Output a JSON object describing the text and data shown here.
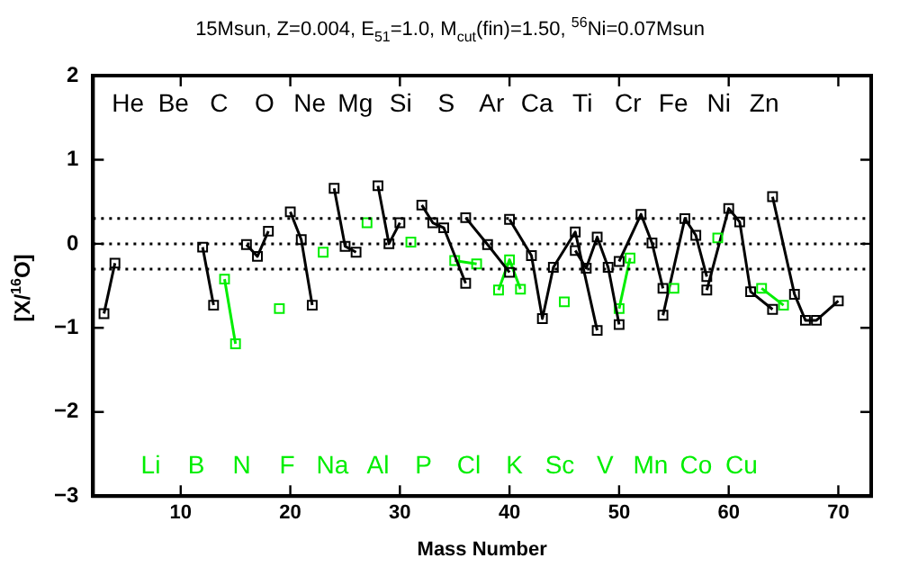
{
  "chart_data": {
    "type": "line",
    "title": "15Msun, Z=0.004, E$_{51}$=1.0, M$_{cut}$(fin)=1.50, $^{56}$Ni=0.07Msun",
    "xlabel": "Mass Number",
    "ylabel": "[X/$^{16}$O]",
    "xlim": [
      2,
      73
    ],
    "xticks": [
      10,
      20,
      30,
      40,
      50,
      60,
      70
    ],
    "ylim": [
      -3,
      2
    ],
    "yticks": [
      -3,
      -2,
      -1,
      0,
      1,
      2
    ],
    "marker": "square",
    "line_style": "solid",
    "series": [
      {
        "color": "#000000",
        "x": [
          3,
          4
        ],
        "values": [
          -0.83,
          -0.23
        ]
      },
      {
        "color": "#000000",
        "x": [
          12,
          13
        ],
        "values": [
          -0.04,
          -0.73
        ]
      },
      {
        "color": "#00ee00",
        "x": [
          14,
          15
        ],
        "values": [
          -0.42,
          -1.19
        ]
      },
      {
        "color": "#000000",
        "x": [
          16,
          17,
          18
        ],
        "values": [
          -0.01,
          -0.15,
          0.15
        ]
      },
      {
        "color": "#00ee00",
        "x": [
          19
        ],
        "values": [
          -0.77
        ]
      },
      {
        "color": "#000000",
        "x": [
          20,
          21,
          22
        ],
        "values": [
          0.38,
          0.05,
          -0.73
        ]
      },
      {
        "color": "#00ee00",
        "x": [
          23
        ],
        "values": [
          -0.1
        ]
      },
      {
        "color": "#000000",
        "x": [
          24,
          25,
          26
        ],
        "values": [
          0.66,
          -0.03,
          -0.1
        ]
      },
      {
        "color": "#00ee00",
        "x": [
          27
        ],
        "values": [
          0.25
        ]
      },
      {
        "color": "#000000",
        "x": [
          28,
          29,
          30
        ],
        "values": [
          0.69,
          0.0,
          0.25
        ]
      },
      {
        "color": "#00ee00",
        "x": [
          31
        ],
        "values": [
          0.02
        ]
      },
      {
        "color": "#000000",
        "x": [
          32,
          33,
          34,
          36
        ],
        "values": [
          0.46,
          0.25,
          0.19,
          -0.47
        ]
      },
      {
        "color": "#00ee00",
        "x": [
          35,
          37
        ],
        "values": [
          -0.2,
          -0.24
        ]
      },
      {
        "color": "#000000",
        "x": [
          36,
          38,
          40
        ],
        "values": [
          0.31,
          -0.01,
          -0.34
        ]
      },
      {
        "color": "#00ee00",
        "x": [
          39,
          40,
          41
        ],
        "values": [
          -0.55,
          -0.19,
          -0.54
        ]
      },
      {
        "color": "#000000",
        "x": [
          40,
          42,
          43,
          44,
          46,
          48
        ],
        "values": [
          0.29,
          -0.14,
          -0.89,
          -0.28,
          0.14,
          -1.03
        ]
      },
      {
        "color": "#00ee00",
        "x": [
          45
        ],
        "values": [
          -0.69
        ]
      },
      {
        "color": "#000000",
        "x": [
          46,
          47,
          48,
          49,
          50
        ],
        "values": [
          -0.08,
          -0.29,
          0.08,
          -0.28,
          -0.96
        ]
      },
      {
        "color": "#00ee00",
        "x": [
          50,
          51
        ],
        "values": [
          -0.77,
          -0.17
        ]
      },
      {
        "color": "#000000",
        "x": [
          50,
          52,
          53,
          54
        ],
        "values": [
          -0.21,
          0.35,
          0.01,
          -0.53
        ]
      },
      {
        "color": "#00ee00",
        "x": [
          55
        ],
        "values": [
          -0.53
        ]
      },
      {
        "color": "#000000",
        "x": [
          54,
          56,
          57,
          58
        ],
        "values": [
          -0.85,
          0.3,
          0.1,
          -0.39
        ]
      },
      {
        "color": "#00ee00",
        "x": [
          59
        ],
        "values": [
          0.07
        ]
      },
      {
        "color": "#000000",
        "x": [
          58,
          60,
          61,
          62,
          64
        ],
        "values": [
          -0.55,
          0.42,
          0.26,
          -0.57,
          -0.78
        ]
      },
      {
        "color": "#00ee00",
        "x": [
          63,
          65
        ],
        "values": [
          -0.53,
          -0.73
        ]
      },
      {
        "color": "#000000",
        "x": [
          64,
          66,
          67,
          68,
          70
        ],
        "values": [
          0.56,
          -0.6,
          -0.91,
          -0.91,
          -0.68
        ]
      }
    ],
    "ref_lines": [
      {
        "axis": "y",
        "value": 0.3,
        "line_style": "dotted",
        "color": "#000000"
      },
      {
        "axis": "y",
        "value": 0,
        "line_style": "dotted",
        "color": "#000000"
      },
      {
        "axis": "y",
        "value": -0.3,
        "line_style": "dotted",
        "color": "#000000"
      }
    ],
    "annotations": [
      "He",
      "Li",
      "Be",
      "B",
      "C",
      "N",
      "O",
      "F",
      "Ne",
      "Na",
      "Mg",
      "Al",
      "Si",
      "P",
      "S",
      "Cl",
      "Ar",
      "K",
      "Ca",
      "Sc",
      "Ti",
      "V",
      "Cr",
      "Mn",
      "Fe",
      "Co",
      "Ni",
      "Cu",
      "Zn"
    ]
  }
}
